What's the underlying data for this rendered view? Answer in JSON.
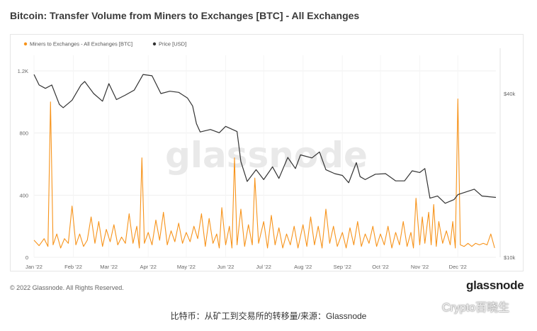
{
  "title": "Bitcoin: Transfer Volume from Miners to Exchanges [BTC] - All Exchanges",
  "watermark": "glassnode",
  "footer": {
    "copyright": "© 2022 Glassnode. All Rights Reserved.",
    "logo": "glassnode"
  },
  "caption": "比特币：从矿工到交易所的转移量/来源：Glassnode",
  "wechat": {
    "icon": "wechat-icon",
    "account": "Crypto百晓生"
  },
  "colors": {
    "volume": "#f7931a",
    "price": "#333333",
    "grid": "#efefef"
  },
  "chart_data": {
    "type": "line",
    "title": "Bitcoin: Transfer Volume from Miners to Exchanges [BTC] - All Exchanges",
    "legend": [
      "Miners to Exchanges - All Exchanges [BTC]",
      "Price [USD]"
    ],
    "legend_position": "top-left",
    "grid": true,
    "x_ticks": [
      "Jan '22",
      "Feb '22",
      "Mar '22",
      "Apr '22",
      "May '22",
      "Jun '22",
      "Jul '22",
      "Aug '22",
      "Sep '22",
      "Oct '22",
      "Nov '22",
      "Dec '22"
    ],
    "y_left": {
      "ticks": [
        0,
        400,
        800,
        1200
      ],
      "tick_labels": [
        "0",
        "400",
        "800",
        "1.2K"
      ],
      "range": [
        0,
        1200
      ]
    },
    "y_right": {
      "ticks": [
        10000,
        40000
      ],
      "tick_labels": [
        "$10k",
        "$40k"
      ],
      "scale": "log"
    },
    "series": [
      {
        "name": "Miners to Exchanges - All Exchanges [BTC]",
        "axis": "left",
        "points": [
          [
            "2022-01-01",
            110
          ],
          [
            "2022-01-05",
            75
          ],
          [
            "2022-01-09",
            120
          ],
          [
            "2022-01-12",
            70
          ],
          [
            "2022-01-14",
            1000
          ],
          [
            "2022-01-16",
            80
          ],
          [
            "2022-01-19",
            150
          ],
          [
            "2022-01-22",
            60
          ],
          [
            "2022-01-25",
            120
          ],
          [
            "2022-01-28",
            90
          ],
          [
            "2022-01-31",
            330
          ],
          [
            "2022-02-03",
            80
          ],
          [
            "2022-02-06",
            150
          ],
          [
            "2022-02-09",
            70
          ],
          [
            "2022-02-12",
            110
          ],
          [
            "2022-02-15",
            260
          ],
          [
            "2022-02-18",
            90
          ],
          [
            "2022-02-21",
            230
          ],
          [
            "2022-02-24",
            70
          ],
          [
            "2022-02-27",
            180
          ],
          [
            "2022-03-02",
            100
          ],
          [
            "2022-03-05",
            210
          ],
          [
            "2022-03-08",
            80
          ],
          [
            "2022-03-11",
            130
          ],
          [
            "2022-03-14",
            90
          ],
          [
            "2022-03-17",
            280
          ],
          [
            "2022-03-20",
            90
          ],
          [
            "2022-03-23",
            200
          ],
          [
            "2022-03-25",
            60
          ],
          [
            "2022-03-27",
            640
          ],
          [
            "2022-03-29",
            90
          ],
          [
            "2022-04-01",
            160
          ],
          [
            "2022-04-04",
            80
          ],
          [
            "2022-04-07",
            240
          ],
          [
            "2022-04-10",
            110
          ],
          [
            "2022-04-13",
            290
          ],
          [
            "2022-04-16",
            80
          ],
          [
            "2022-04-19",
            170
          ],
          [
            "2022-04-22",
            100
          ],
          [
            "2022-04-25",
            220
          ],
          [
            "2022-04-28",
            90
          ],
          [
            "2022-05-01",
            160
          ],
          [
            "2022-05-04",
            100
          ],
          [
            "2022-05-07",
            200
          ],
          [
            "2022-05-10",
            120
          ],
          [
            "2022-05-13",
            280
          ],
          [
            "2022-05-16",
            70
          ],
          [
            "2022-05-19",
            250
          ],
          [
            "2022-05-22",
            90
          ],
          [
            "2022-05-25",
            150
          ],
          [
            "2022-05-27",
            60
          ],
          [
            "2022-05-29",
            320
          ],
          [
            "2022-06-01",
            80
          ],
          [
            "2022-06-04",
            200
          ],
          [
            "2022-06-06",
            60
          ],
          [
            "2022-06-08",
            640
          ],
          [
            "2022-06-10",
            80
          ],
          [
            "2022-06-13",
            310
          ],
          [
            "2022-06-16",
            70
          ],
          [
            "2022-06-19",
            210
          ],
          [
            "2022-06-22",
            80
          ],
          [
            "2022-06-24",
            510
          ],
          [
            "2022-06-27",
            90
          ],
          [
            "2022-07-01",
            230
          ],
          [
            "2022-07-04",
            60
          ],
          [
            "2022-07-07",
            270
          ],
          [
            "2022-07-10",
            80
          ],
          [
            "2022-07-13",
            190
          ],
          [
            "2022-07-16",
            60
          ],
          [
            "2022-07-19",
            150
          ],
          [
            "2022-07-22",
            80
          ],
          [
            "2022-07-25",
            200
          ],
          [
            "2022-07-28",
            60
          ],
          [
            "2022-08-01",
            210
          ],
          [
            "2022-08-04",
            70
          ],
          [
            "2022-08-07",
            260
          ],
          [
            "2022-08-10",
            80
          ],
          [
            "2022-08-13",
            200
          ],
          [
            "2022-08-16",
            60
          ],
          [
            "2022-08-19",
            310
          ],
          [
            "2022-08-22",
            90
          ],
          [
            "2022-08-25",
            200
          ],
          [
            "2022-08-28",
            70
          ],
          [
            "2022-09-01",
            160
          ],
          [
            "2022-09-04",
            60
          ],
          [
            "2022-09-07",
            190
          ],
          [
            "2022-09-10",
            80
          ],
          [
            "2022-09-13",
            230
          ],
          [
            "2022-09-16",
            70
          ],
          [
            "2022-09-19",
            150
          ],
          [
            "2022-09-22",
            90
          ],
          [
            "2022-09-25",
            200
          ],
          [
            "2022-09-28",
            70
          ],
          [
            "2022-10-01",
            150
          ],
          [
            "2022-10-04",
            80
          ],
          [
            "2022-10-07",
            200
          ],
          [
            "2022-10-10",
            60
          ],
          [
            "2022-10-13",
            160
          ],
          [
            "2022-10-16",
            80
          ],
          [
            "2022-10-19",
            230
          ],
          [
            "2022-10-22",
            70
          ],
          [
            "2022-10-25",
            160
          ],
          [
            "2022-10-27",
            60
          ],
          [
            "2022-10-29",
            380
          ],
          [
            "2022-11-01",
            80
          ],
          [
            "2022-11-03",
            260
          ],
          [
            "2022-11-05",
            90
          ],
          [
            "2022-11-08",
            290
          ],
          [
            "2022-11-10",
            80
          ],
          [
            "2022-11-12",
            340
          ],
          [
            "2022-11-14",
            70
          ],
          [
            "2022-11-16",
            230
          ],
          [
            "2022-11-19",
            90
          ],
          [
            "2022-11-22",
            170
          ],
          [
            "2022-11-25",
            80
          ],
          [
            "2022-11-27",
            230
          ],
          [
            "2022-11-29",
            60
          ],
          [
            "2022-12-01",
            1020
          ],
          [
            "2022-12-03",
            80
          ],
          [
            "2022-12-06",
            70
          ],
          [
            "2022-12-09",
            90
          ],
          [
            "2022-12-12",
            70
          ],
          [
            "2022-12-15",
            90
          ],
          [
            "2022-12-18",
            80
          ],
          [
            "2022-12-21",
            90
          ],
          [
            "2022-12-24",
            80
          ],
          [
            "2022-12-27",
            150
          ],
          [
            "2022-12-30",
            60
          ]
        ]
      },
      {
        "name": "Price [USD]",
        "axis": "right",
        "points": [
          [
            "2022-01-01",
            47000
          ],
          [
            "2022-01-05",
            43000
          ],
          [
            "2022-01-10",
            41800
          ],
          [
            "2022-01-15",
            43000
          ],
          [
            "2022-01-21",
            36500
          ],
          [
            "2022-01-24",
            35500
          ],
          [
            "2022-01-31",
            37800
          ],
          [
            "2022-02-07",
            43000
          ],
          [
            "2022-02-10",
            44300
          ],
          [
            "2022-02-17",
            40000
          ],
          [
            "2022-02-24",
            37500
          ],
          [
            "2022-03-01",
            43500
          ],
          [
            "2022-03-07",
            38000
          ],
          [
            "2022-03-14",
            39500
          ],
          [
            "2022-03-21",
            41200
          ],
          [
            "2022-03-28",
            47000
          ],
          [
            "2022-04-04",
            46500
          ],
          [
            "2022-04-11",
            40000
          ],
          [
            "2022-04-18",
            40800
          ],
          [
            "2022-04-25",
            40400
          ],
          [
            "2022-05-02",
            38500
          ],
          [
            "2022-05-06",
            36000
          ],
          [
            "2022-05-09",
            31000
          ],
          [
            "2022-05-12",
            28900
          ],
          [
            "2022-05-20",
            29500
          ],
          [
            "2022-05-27",
            28700
          ],
          [
            "2022-06-01",
            30300
          ],
          [
            "2022-06-10",
            29000
          ],
          [
            "2022-06-13",
            22500
          ],
          [
            "2022-06-18",
            19000
          ],
          [
            "2022-06-25",
            21000
          ],
          [
            "2022-07-01",
            19300
          ],
          [
            "2022-07-08",
            21500
          ],
          [
            "2022-07-13",
            19500
          ],
          [
            "2022-07-20",
            23300
          ],
          [
            "2022-07-26",
            21200
          ],
          [
            "2022-07-30",
            23800
          ],
          [
            "2022-08-08",
            23200
          ],
          [
            "2022-08-14",
            24400
          ],
          [
            "2022-08-19",
            21000
          ],
          [
            "2022-08-26",
            20300
          ],
          [
            "2022-09-01",
            20000
          ],
          [
            "2022-09-06",
            18800
          ],
          [
            "2022-09-12",
            22300
          ],
          [
            "2022-09-15",
            19800
          ],
          [
            "2022-09-19",
            19300
          ],
          [
            "2022-09-27",
            20200
          ],
          [
            "2022-10-05",
            20300
          ],
          [
            "2022-10-13",
            19100
          ],
          [
            "2022-10-20",
            19100
          ],
          [
            "2022-10-26",
            20800
          ],
          [
            "2022-11-01",
            20500
          ],
          [
            "2022-11-05",
            21200
          ],
          [
            "2022-11-09",
            16500
          ],
          [
            "2022-11-15",
            16800
          ],
          [
            "2022-11-21",
            15800
          ],
          [
            "2022-11-28",
            16300
          ],
          [
            "2022-12-01",
            17000
          ],
          [
            "2022-12-14",
            17800
          ],
          [
            "2022-12-20",
            16800
          ],
          [
            "2022-12-31",
            16600
          ]
        ]
      }
    ]
  }
}
